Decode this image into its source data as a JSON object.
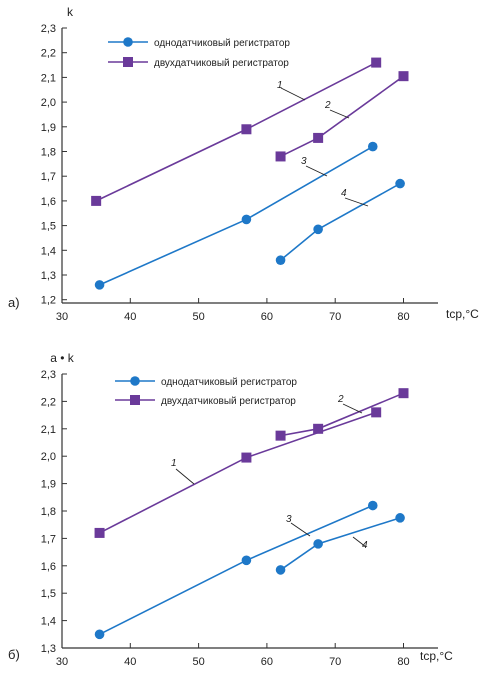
{
  "chart_data": [
    {
      "panel_label": "а)",
      "type": "line",
      "ylabel": "k",
      "xlabel": "tср,°C",
      "xlim": [
        30,
        85
      ],
      "ylim": [
        1.2,
        2.3
      ],
      "x_ticks": [
        "30",
        "40",
        "50",
        "60",
        "70",
        "80"
      ],
      "y_ticks": [
        "1,2",
        "1,3",
        "1,4",
        "1,5",
        "1,6",
        "1,7",
        "1,8",
        "1,9",
        "2,0",
        "2,1",
        "2,2",
        "2,3"
      ],
      "legend": [
        "однодатчиковый регистратор",
        "двухдатчиковый регистратор"
      ],
      "series": [
        {
          "label": "1",
          "marker": "square",
          "color": "#6a3a9a",
          "x": [
            35,
            57,
            76
          ],
          "y": [
            1.6,
            1.89,
            2.16
          ]
        },
        {
          "label": "2",
          "marker": "square",
          "color": "#6a3a9a",
          "x": [
            62,
            67.5,
            80
          ],
          "y": [
            1.78,
            1.855,
            2.105
          ]
        },
        {
          "label": "3",
          "marker": "circle",
          "color": "#1e78c8",
          "x": [
            35.5,
            57,
            75.5
          ],
          "y": [
            1.26,
            1.525,
            1.82
          ]
        },
        {
          "label": "4",
          "marker": "circle",
          "color": "#1e78c8",
          "x": [
            62,
            67.5,
            79.5
          ],
          "y": [
            1.36,
            1.485,
            1.67
          ]
        }
      ]
    },
    {
      "panel_label": "б)",
      "type": "line",
      "ylabel": "a • k",
      "xlabel": "tср,°C",
      "xlim": [
        30,
        85
      ],
      "ylim": [
        1.3,
        2.3
      ],
      "x_ticks": [
        "30",
        "40",
        "50",
        "60",
        "70",
        "80"
      ],
      "y_ticks": [
        "1,3",
        "1,4",
        "1,5",
        "1,6",
        "1,7",
        "1,8",
        "1,9",
        "2,0",
        "2,1",
        "2,2",
        "2,3"
      ],
      "legend": [
        "однодатчиковый регистратор",
        "двухдатчиковый регистратор"
      ],
      "series": [
        {
          "label": "1",
          "marker": "square",
          "color": "#6a3a9a",
          "x": [
            35.5,
            57,
            76
          ],
          "y": [
            1.72,
            1.995,
            2.16
          ]
        },
        {
          "label": "2",
          "marker": "square",
          "color": "#6a3a9a",
          "x": [
            62,
            67.5,
            80
          ],
          "y": [
            2.075,
            2.1,
            2.23
          ]
        },
        {
          "label": "3",
          "marker": "circle",
          "color": "#1e78c8",
          "x": [
            35.5,
            57,
            75.5
          ],
          "y": [
            1.35,
            1.62,
            1.82
          ]
        },
        {
          "label": "4",
          "marker": "circle",
          "color": "#1e78c8",
          "x": [
            62,
            67.5,
            79.5
          ],
          "y": [
            1.585,
            1.68,
            1.775
          ]
        }
      ]
    }
  ]
}
